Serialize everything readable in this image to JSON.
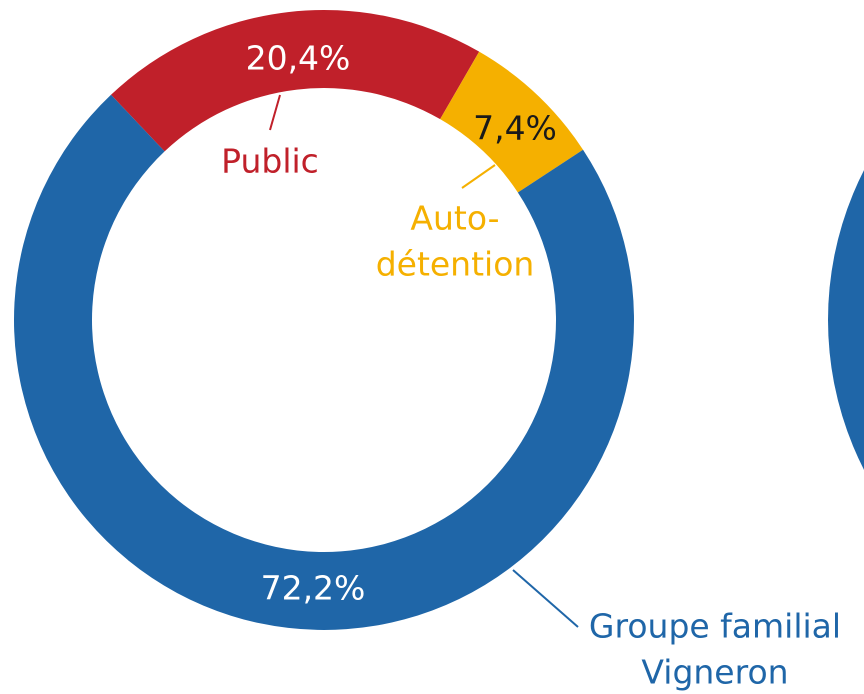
{
  "chart_data": {
    "type": "donut",
    "categories": [
      [
        "Public"
      ],
      [
        "Auto-",
        "détention"
      ],
      [
        "Groupe familial",
        "Vigneron"
      ]
    ],
    "values": [
      20.4,
      7.4,
      72.2
    ],
    "value_labels": [
      "20,4%",
      "7,4%",
      "72,2%"
    ],
    "colors": [
      "#c0202a",
      "#f5b000",
      "#1f66a8"
    ]
  }
}
